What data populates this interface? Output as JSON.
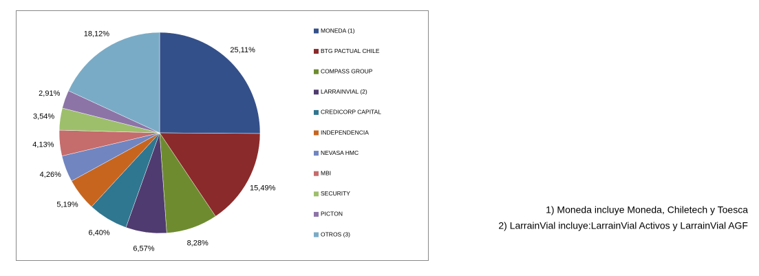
{
  "chart_data": {
    "type": "pie",
    "categories": [
      "MONEDA (1)",
      "BTG PACTUAL CHILE",
      "COMPASS GROUP",
      "LARRAINVIAL (2)",
      "CREDICORP CAPITAL",
      "INDEPENDENCIA",
      "NEVASA HMC",
      "MBI",
      "SECURITY",
      "PICTON",
      "OTROS (3)"
    ],
    "values": [
      25.11,
      15.49,
      8.28,
      6.57,
      6.4,
      5.19,
      4.26,
      4.13,
      3.54,
      2.91,
      18.12
    ],
    "value_labels": [
      "25,11%",
      "15,49%",
      "8,28%",
      "6,57%",
      "6,40%",
      "5,19%",
      "4,26%",
      "4,13%",
      "3,54%",
      "2,91%",
      "18,12%"
    ],
    "colors": [
      "#34508a",
      "#8b2a2a",
      "#6e8c2f",
      "#4f3b6f",
      "#2f7690",
      "#c7651f",
      "#7185c0",
      "#c56c6c",
      "#9dbf6c",
      "#8d74a7",
      "#7aabc6"
    ],
    "legend": "right",
    "notes": [
      "1) Moneda incluye Moneda, Chiletech y Toesca",
      "2) LarrainVial incluye:LarrainVial Activos y LarrainVial AGF"
    ]
  }
}
